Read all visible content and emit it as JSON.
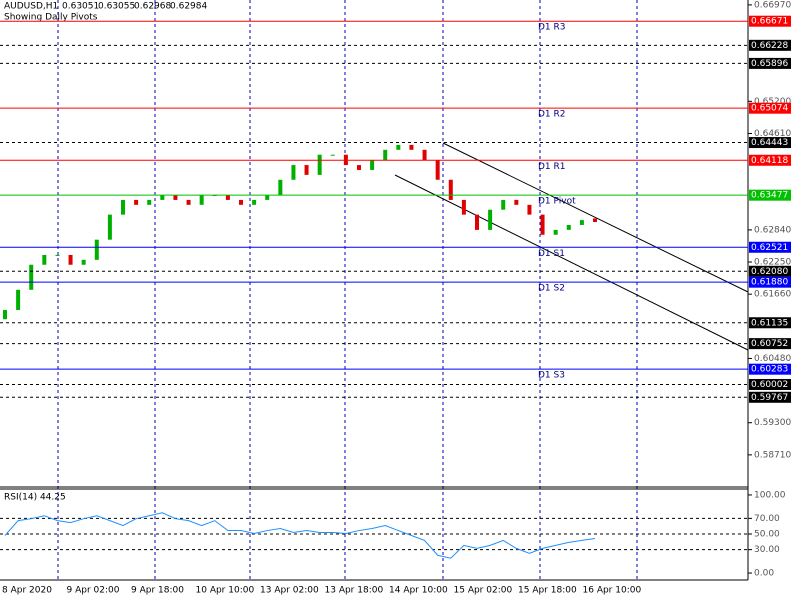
{
  "header": {
    "symbol": "AUDUSD,H1",
    "quote": [
      "0.63051",
      "0.63055",
      "0.62968",
      "0.62984"
    ],
    "subtitle": "Showing Daily Pivots"
  },
  "chart_data": [
    {
      "type": "candlestick",
      "open": [
        0.612,
        0.6137,
        0.6174,
        0.622,
        0.6238,
        0.6238,
        0.622,
        0.6229,
        0.6266,
        0.6312,
        0.6339,
        0.633,
        0.6339,
        0.6348,
        0.6339,
        0.633,
        0.6348,
        0.6348,
        0.6339,
        0.633,
        0.6339,
        0.6348,
        0.6376,
        0.6403,
        0.6385,
        0.6422,
        0.6422,
        0.6403,
        0.6394,
        0.6412,
        0.6431,
        0.644,
        0.6431,
        0.6412,
        0.6376,
        0.6339,
        0.6312,
        0.6284,
        0.6321,
        0.6339,
        0.633,
        0.6312,
        0.6275,
        0.6284,
        0.6293,
        0.63051
      ],
      "close": [
        0.6137,
        0.6174,
        0.622,
        0.6238,
        0.6238,
        0.622,
        0.6229,
        0.6266,
        0.6312,
        0.6339,
        0.633,
        0.6339,
        0.6348,
        0.6339,
        0.633,
        0.6348,
        0.6348,
        0.6339,
        0.633,
        0.6339,
        0.6348,
        0.6376,
        0.6403,
        0.6385,
        0.6422,
        0.6422,
        0.6403,
        0.6394,
        0.6412,
        0.6431,
        0.644,
        0.6431,
        0.6412,
        0.6376,
        0.6339,
        0.6312,
        0.6284,
        0.6321,
        0.6339,
        0.633,
        0.6312,
        0.6275,
        0.6284,
        0.6293,
        0.6302,
        0.62984
      ],
      "up_color": "#00b000",
      "down_color": "#e00000",
      "ylim": [
        0.5812,
        0.6706
      ],
      "yticks": [
        {
          "value": 0.6697,
          "label": "0.66970"
        },
        {
          "value": 0.652,
          "label": "0.65200"
        },
        {
          "value": 0.6461,
          "label": "0.64610"
        },
        {
          "value": 0.6284,
          "label": "0.62840"
        },
        {
          "value": 0.6225,
          "label": "0.62250"
        },
        {
          "value": 0.6166,
          "label": "0.61660"
        },
        {
          "value": 0.6048,
          "label": "0.60480"
        },
        {
          "value": 0.593,
          "label": "0.59300"
        },
        {
          "value": 0.5871,
          "label": "0.58710"
        }
      ],
      "grid": false,
      "levels": [
        {
          "value": 0.66671,
          "label": "0.66671",
          "name": "D1 R3",
          "color": "#ff0000"
        },
        {
          "value": 0.66228,
          "label": "0.66228",
          "color": "#000000"
        },
        {
          "value": 0.65896,
          "label": "0.65896",
          "color": "#000000"
        },
        {
          "value": 0.65074,
          "label": "0.65074",
          "name": "D1 R2",
          "color": "#ff0000"
        },
        {
          "value": 0.64443,
          "label": "0.64443",
          "color": "#000000"
        },
        {
          "value": 0.64118,
          "label": "0.64118",
          "name": "D1 R1",
          "color": "#ff0000"
        },
        {
          "value": 0.63477,
          "label": "0.63477",
          "name": "D1 Pivot",
          "color": "#00c000"
        },
        {
          "value": 0.62521,
          "label": "0.62521",
          "name": "D1 S1",
          "color": "#0000ff"
        },
        {
          "value": 0.6208,
          "label": "0.62080",
          "color": "#000000"
        },
        {
          "value": 0.6188,
          "label": "0.61880",
          "name": "D1 S2",
          "color": "#0000ff"
        },
        {
          "value": 0.61135,
          "label": "0.61135",
          "color": "#000000"
        },
        {
          "value": 0.60752,
          "label": "0.60752",
          "color": "#000000"
        },
        {
          "value": 0.60283,
          "label": "0.60283",
          "name": "D1 S3",
          "color": "#0000ff"
        },
        {
          "value": 0.60002,
          "label": "0.60002",
          "color": "#000000"
        },
        {
          "value": 0.59767,
          "label": "0.59767",
          "color": "#000000"
        }
      ],
      "x_tick_labels": [
        "8 Apr 2020",
        "9 Apr 02:00",
        "9 Apr 18:00",
        "10 Apr 10:00",
        "13 Apr 02:00",
        "13 Apr 18:00",
        "14 Apr 10:00",
        "15 Apr 02:00",
        "15 Apr 18:00",
        "16 Apr 10:00"
      ]
    },
    {
      "type": "line",
      "title": "RSI(14) 44.25",
      "color": "#1e90ff",
      "values": [
        48.1,
        67.1,
        69.6,
        73.4,
        67.1,
        64.6,
        69.6,
        73.4,
        67.1,
        60.8,
        69.6,
        73.4,
        77.2,
        69.6,
        67.1,
        60.8,
        67.1,
        54.4,
        54.4,
        50.6,
        54.4,
        57.0,
        51.9,
        54.4,
        51.9,
        51.9,
        50.6,
        54.4,
        57.0,
        60.8,
        54.4,
        48.1,
        41.8,
        22.8,
        19.0,
        35.4,
        31.6,
        35.4,
        41.8,
        31.6,
        25.3,
        31.6,
        35.4,
        39.2,
        41.8,
        44.25
      ],
      "ylim": [
        -8.9,
        107.6
      ],
      "yticks": [
        {
          "value": 100,
          "label": "100.00"
        },
        {
          "value": 70,
          "label": "70.00"
        },
        {
          "value": 50,
          "label": "50.00"
        },
        {
          "value": 30,
          "label": "30.00"
        },
        {
          "value": 0,
          "label": "0.00"
        }
      ],
      "dashed_levels": [
        70,
        50,
        30
      ]
    }
  ]
}
